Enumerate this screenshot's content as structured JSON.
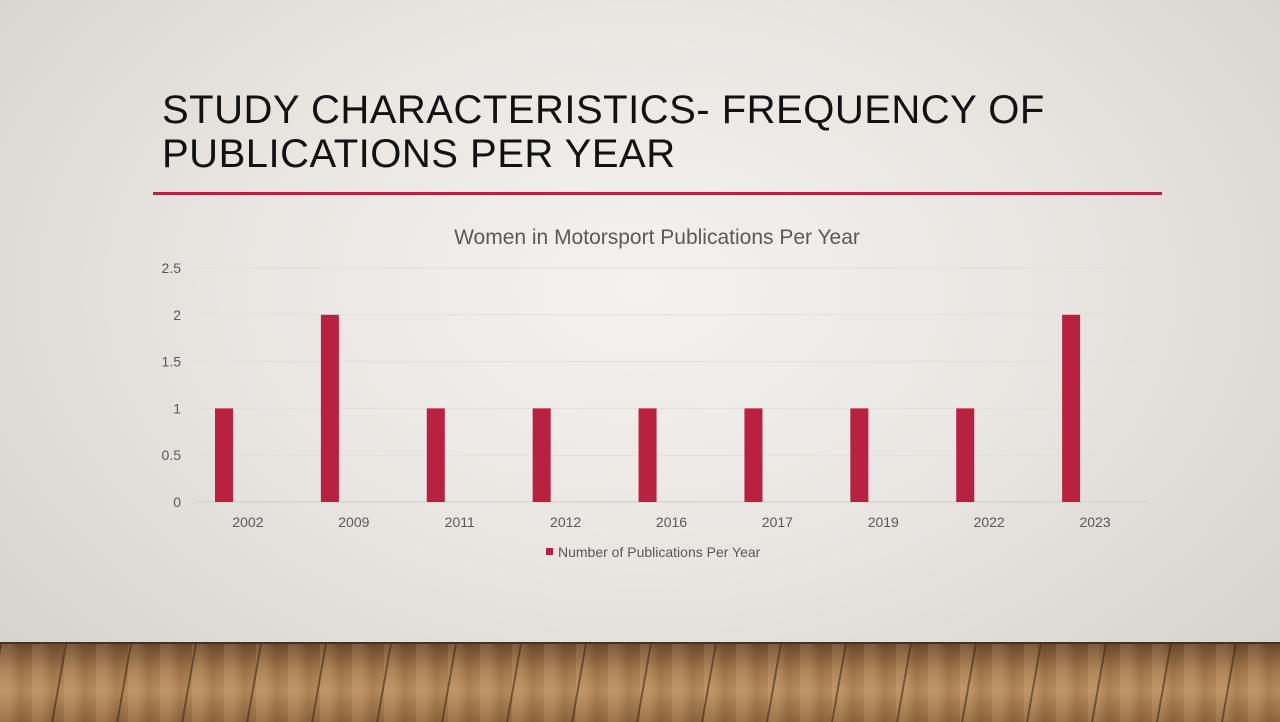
{
  "slide": {
    "title_line1": "STUDY CHARACTERISTICS- FREQUENCY OF",
    "title_line2": "PUBLICATIONS PER YEAR"
  },
  "colors": {
    "accent": "#b8213f",
    "bar": "#b8213f",
    "text": "#595959"
  },
  "chart_data": {
    "type": "bar",
    "title": "Women in Motorsport Publications Per Year",
    "categories": [
      "2002",
      "2009",
      "2011",
      "2012",
      "2016",
      "2017",
      "2019",
      "2022",
      "2023"
    ],
    "series": [
      {
        "name": "Number of Publications Per Year",
        "values": [
          1,
          2,
          1,
          1,
          1,
          1,
          1,
          1,
          2
        ]
      }
    ],
    "ylim": [
      0,
      2.5
    ],
    "yticks": [
      "0",
      "0.5",
      "1",
      "1.5",
      "2",
      "2.5"
    ],
    "xlabel": "",
    "ylabel": "",
    "grid": true,
    "legend": "bottom"
  }
}
